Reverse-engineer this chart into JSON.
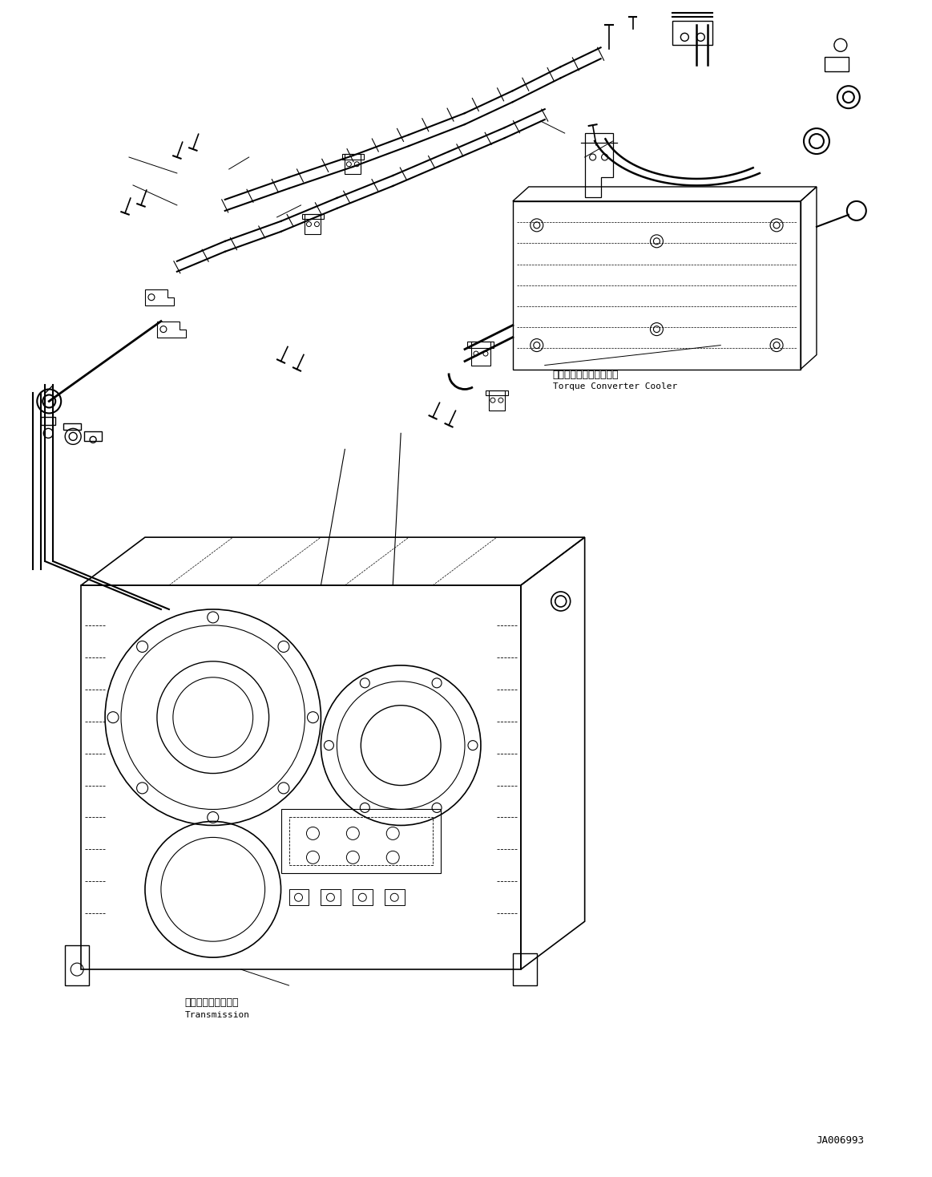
{
  "title": "",
  "background_color": "#ffffff",
  "line_color": "#000000",
  "label_torque_ja": "トルクコンバータクーラ",
  "label_torque_en": "Torque Converter Cooler",
  "label_trans_ja": "トランスミッション",
  "label_trans_en": "Transmission",
  "part_number": "JA006993",
  "fig_width": 11.63,
  "fig_height": 14.68,
  "dpi": 100
}
